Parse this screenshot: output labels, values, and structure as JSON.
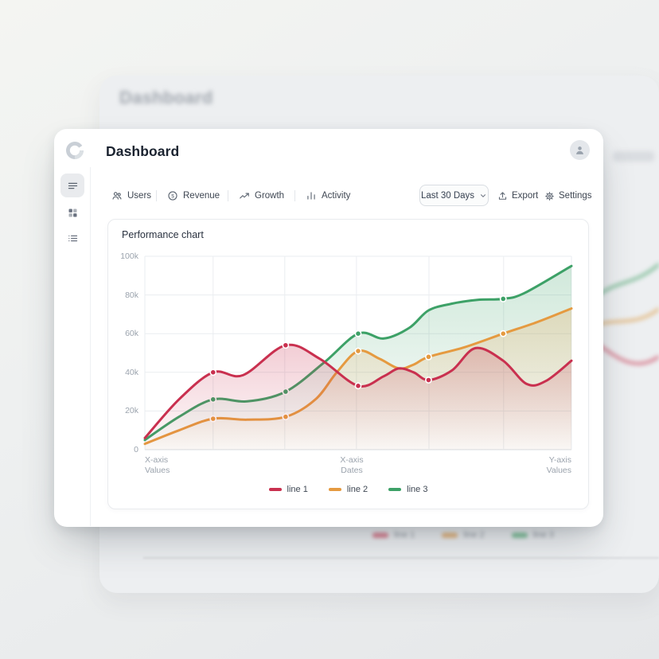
{
  "background": {
    "title": "Dashboard",
    "legend": [
      {
        "label": "line 1",
        "color": "#d76f82"
      },
      {
        "label": "line 2",
        "color": "#e2ad6e"
      },
      {
        "label": "line 3",
        "color": "#6fb98c"
      }
    ]
  },
  "header": {
    "title": "Dashboard"
  },
  "sidebar": {
    "items": [
      {
        "icon": "menu-lines-icon",
        "active": true
      },
      {
        "icon": "grid-icon",
        "active": false
      },
      {
        "icon": "list-icon",
        "active": false
      }
    ]
  },
  "toolbar": {
    "tabs": [
      {
        "label": "Users",
        "icon": "users-icon"
      },
      {
        "label": "Revenue",
        "icon": "coin-icon",
        "icon_glyph": "$"
      },
      {
        "label": "Growth",
        "icon": "trend-up-icon"
      },
      {
        "label": "Activity",
        "icon": "bar-chart-icon"
      }
    ],
    "period_selector": {
      "value": "Last 30 Days",
      "icon": "chevron-down-icon"
    },
    "export_label": "Export",
    "settings_label": "Settings"
  },
  "chart": {
    "title": "Performance chart",
    "x_axis_labels": [
      {
        "l1": "X-axis",
        "l2": "Values"
      },
      {
        "l1": "X-axis",
        "l2": "Dates"
      },
      {
        "l1": "Y-axis",
        "l2": "Values"
      }
    ],
    "legend": [
      {
        "label": "line 1",
        "color": "#c9304f"
      },
      {
        "label": "line 2",
        "color": "#e59a40"
      },
      {
        "label": "line 3",
        "color": "#3da167"
      }
    ]
  },
  "chart_data": {
    "type": "line",
    "title": "Performance chart",
    "ylim": [
      0,
      100000
    ],
    "y_unit": "k",
    "grid": true,
    "legend_position": "bottom",
    "y_ticks": [
      {
        "label": "100k",
        "value": 100000
      },
      {
        "label": "80k",
        "value": 80000
      },
      {
        "label": "60k",
        "value": 60000
      },
      {
        "label": "40k",
        "value": 40000
      },
      {
        "label": "20k",
        "value": 20000
      },
      {
        "label": "0",
        "value": 0
      }
    ],
    "x_gridlines_pct": [
      0,
      16,
      32.8,
      49.6,
      66.6,
      84.1,
      100
    ],
    "series": [
      {
        "name": "line 3",
        "color": "#3da167",
        "points": [
          [
            0,
            5000
          ],
          [
            8,
            17000
          ],
          [
            16,
            26000
          ],
          [
            24,
            25000
          ],
          [
            33,
            30000
          ],
          [
            42,
            45000
          ],
          [
            50,
            60000
          ],
          [
            56,
            57500
          ],
          [
            62,
            63000
          ],
          [
            66.5,
            72000
          ],
          [
            72,
            75500
          ],
          [
            78,
            77500
          ],
          [
            84,
            78000
          ],
          [
            89,
            81000
          ],
          [
            100,
            95000
          ]
        ],
        "markers": [
          [
            16,
            26000
          ],
          [
            33,
            30000
          ],
          [
            50,
            60000
          ],
          [
            84,
            78000
          ]
        ]
      },
      {
        "name": "line 2",
        "color": "#e59a40",
        "points": [
          [
            0,
            3000
          ],
          [
            8,
            10000
          ],
          [
            16,
            16000
          ],
          [
            24,
            15500
          ],
          [
            33,
            17000
          ],
          [
            40,
            26000
          ],
          [
            45,
            40000
          ],
          [
            50,
            51000
          ],
          [
            55,
            47000
          ],
          [
            59.5,
            42000
          ],
          [
            63,
            44000
          ],
          [
            66.5,
            48000
          ],
          [
            75,
            53000
          ],
          [
            84,
            60000
          ],
          [
            92,
            66000
          ],
          [
            100,
            73000
          ]
        ],
        "markers": [
          [
            16,
            16000
          ],
          [
            33,
            17000
          ],
          [
            50,
            51000
          ],
          [
            66.5,
            48000
          ],
          [
            84,
            60000
          ]
        ]
      },
      {
        "name": "line 1",
        "color": "#c9304f",
        "points": [
          [
            0,
            6000
          ],
          [
            8,
            26000
          ],
          [
            16,
            40000
          ],
          [
            23,
            38500
          ],
          [
            33,
            54000
          ],
          [
            41,
            47000
          ],
          [
            50,
            33000
          ],
          [
            56,
            38000
          ],
          [
            59.5,
            42000
          ],
          [
            63,
            40000
          ],
          [
            66.5,
            36000
          ],
          [
            72,
            41000
          ],
          [
            77.5,
            52500
          ],
          [
            84,
            46000
          ],
          [
            89.5,
            34000
          ],
          [
            94,
            35500
          ],
          [
            100,
            46000
          ]
        ],
        "markers": [
          [
            16,
            40000
          ],
          [
            33,
            54000
          ],
          [
            50,
            33000
          ],
          [
            66.5,
            36000
          ]
        ]
      }
    ]
  }
}
